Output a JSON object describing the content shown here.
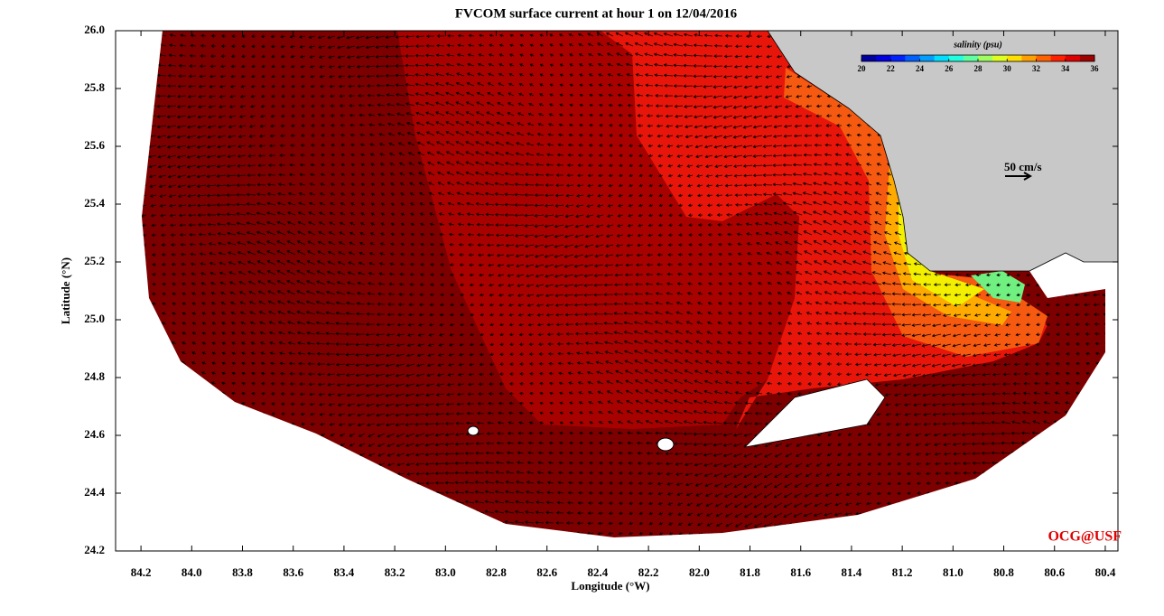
{
  "chart_data": {
    "type": "map",
    "title": "FVCOM surface current at hour 1 on 12/04/2016",
    "x_label": "Longitude (°W)",
    "y_label": "Latitude (°N)",
    "xlim": [
      84.3,
      80.35
    ],
    "ylim": [
      24.2,
      26.0
    ],
    "xticks": [
      84.2,
      {
        "value": 84.0,
        "label": "84.0"
      },
      83.8,
      83.6,
      83.4,
      83.2,
      {
        "value": 83.0,
        "label": "83.0"
      },
      82.8,
      82.6,
      82.4,
      82.2,
      {
        "value": 82.0,
        "label": "82.0"
      },
      81.8,
      81.6,
      81.4,
      81.2,
      {
        "value": 81.0,
        "label": "81.0"
      },
      80.8,
      80.6,
      80.4
    ],
    "yticks": [
      24.2,
      24.4,
      24.6,
      24.8,
      {
        "value": 25.0,
        "label": "25.0"
      },
      25.2,
      25.4,
      25.6,
      25.8,
      {
        "value": 26.0,
        "label": "26.0"
      }
    ],
    "colorbar": {
      "title": "salinity (psu)",
      "lim": [
        20,
        36
      ],
      "ticks": [
        20,
        22,
        24,
        26,
        28,
        30,
        32,
        34,
        36
      ],
      "colormap": "jet"
    },
    "scale_arrow": {
      "label": "50 cm/s"
    },
    "credit": "OCG@USF"
  }
}
